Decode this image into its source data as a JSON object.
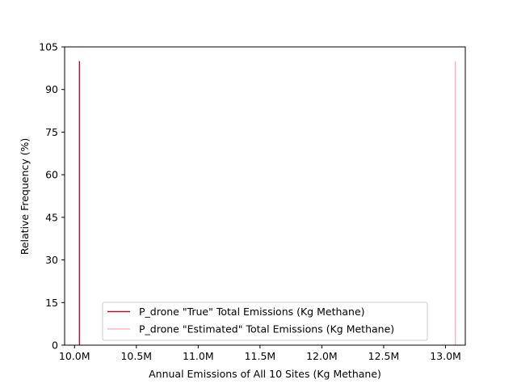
{
  "chart_data": {
    "type": "line",
    "title": "",
    "xlabel": "Annual Emissions of All 10 Sites (Kg Methane)",
    "ylabel": "Relative Frequency (%)",
    "xlim": [
      9.92,
      13.16
    ],
    "ylim": [
      0,
      105
    ],
    "x_ticks": [
      10.0,
      10.5,
      11.0,
      11.5,
      12.0,
      12.5,
      13.0
    ],
    "x_tick_labels": [
      "10.0M",
      "10.5M",
      "11.0M",
      "11.5M",
      "12.0M",
      "12.5M",
      "13.0M"
    ],
    "y_ticks": [
      0,
      15,
      30,
      45,
      60,
      75,
      90,
      105
    ],
    "y_tick_labels": [
      "0",
      "15",
      "30",
      "45",
      "60",
      "75",
      "90",
      "105"
    ],
    "x_unit_note": "x values in millions of Kg Methane",
    "grid": false,
    "legend_position": "bottom-center",
    "series": [
      {
        "name": "P_drone \"True\" Total Emissions (Kg Methane)",
        "color": "#a8193a",
        "x": [
          10.04
        ],
        "y": [
          100
        ]
      },
      {
        "name": "P_drone \"Estimated\" Total Emissions (Kg Methane)",
        "color": "#ffb6c1",
        "x": [
          13.08
        ],
        "y": [
          100
        ]
      }
    ]
  }
}
